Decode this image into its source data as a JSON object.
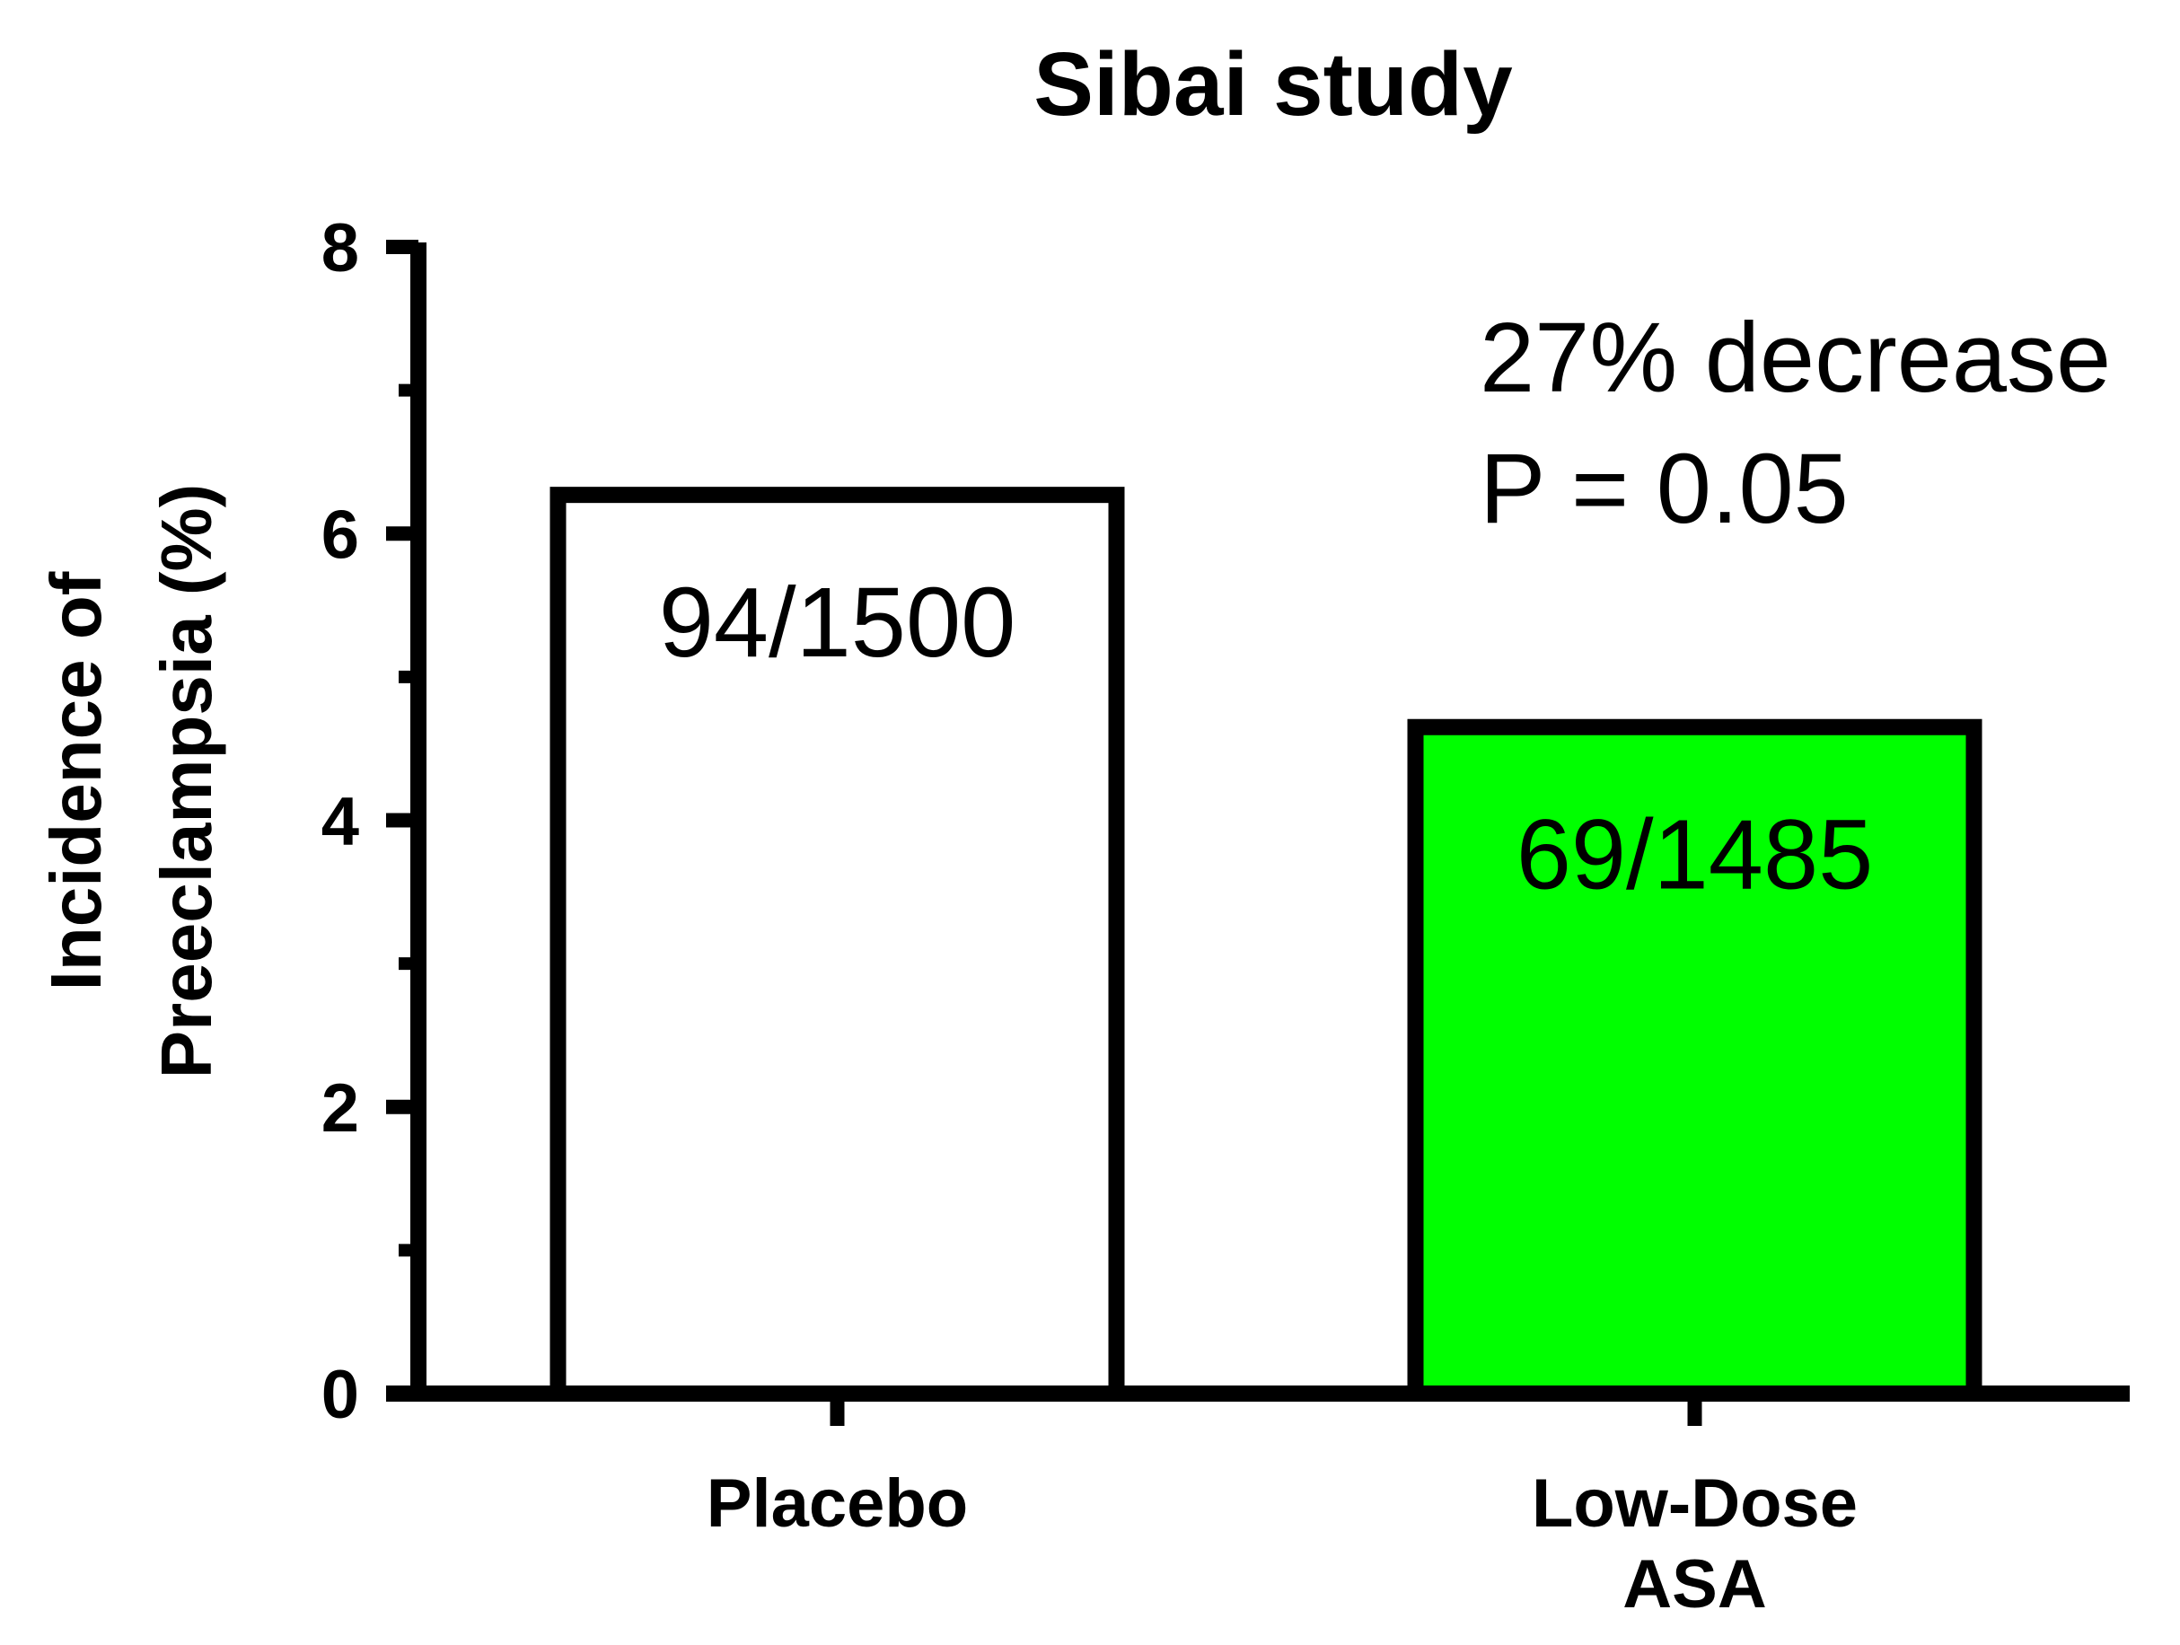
{
  "chart_data": {
    "type": "bar",
    "title": "Sibai study",
    "ylabel_lines": [
      "Incidence of",
      "Preeclampsia (%)"
    ],
    "xlabel": "",
    "ylim": [
      0,
      8
    ],
    "y_major_ticks": [
      0,
      2,
      4,
      6,
      8
    ],
    "y_minor_ticks": [
      1,
      3,
      5,
      7
    ],
    "categories": [
      {
        "label_lines": [
          "Placebo"
        ],
        "value": 6.27,
        "data_label": "94/1500",
        "fill": "#ffffff"
      },
      {
        "label_lines": [
          "Low-Dose",
          "ASA"
        ],
        "value": 4.65,
        "data_label": "69/1485",
        "fill": "#00ff00"
      }
    ],
    "annotations": [
      "27% decrease",
      "P = 0.05"
    ],
    "grid": false,
    "colors": {
      "axis": "#000000",
      "bar_edge": "#000000"
    }
  }
}
